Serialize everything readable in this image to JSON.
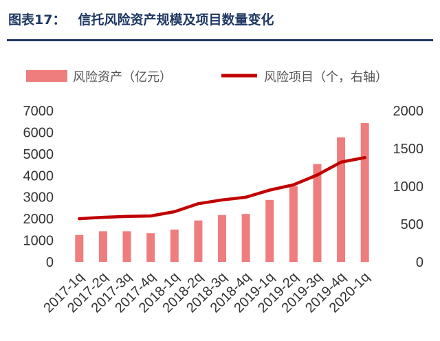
{
  "header": {
    "figure_no": "图表17：",
    "title": "信托风险资产规模及项目数量变化"
  },
  "colors": {
    "title": "#1f3864",
    "bar": "#f07d7d",
    "line": "#c00000"
  },
  "chart_data": {
    "type": "bar",
    "title": "信托风险资产规模及项目数量变化",
    "categories": [
      "2017-1q",
      "2017-2q",
      "2017-3q",
      "2017-4q",
      "2018-1q",
      "2018-2q",
      "2018-3q",
      "2018-4q",
      "2019-1q",
      "2019-2q",
      "2019-3q",
      "2019-4q",
      "2020-1q"
    ],
    "series": [
      {
        "name": "风险资产（亿元）",
        "type": "bar",
        "axis": "left",
        "values": [
          1250,
          1420,
          1420,
          1330,
          1500,
          1920,
          2170,
          2220,
          2870,
          3510,
          4530,
          5770,
          6430
        ]
      },
      {
        "name": "风险项目（个，右轴）",
        "type": "line",
        "axis": "right",
        "values": [
          572,
          590,
          602,
          608,
          665,
          770,
          820,
          855,
          950,
          1020,
          1150,
          1320,
          1380
        ]
      }
    ],
    "y_left": {
      "range": [
        0,
        7000
      ],
      "ticks": [
        "0",
        "1000",
        "2000",
        "3000",
        "4000",
        "5000",
        "6000",
        "7000"
      ]
    },
    "y_right": {
      "range": [
        0,
        2000
      ],
      "ticks": [
        "0",
        "500",
        "1000",
        "1500",
        "2000"
      ]
    },
    "legend_position": "top",
    "grid": false
  }
}
